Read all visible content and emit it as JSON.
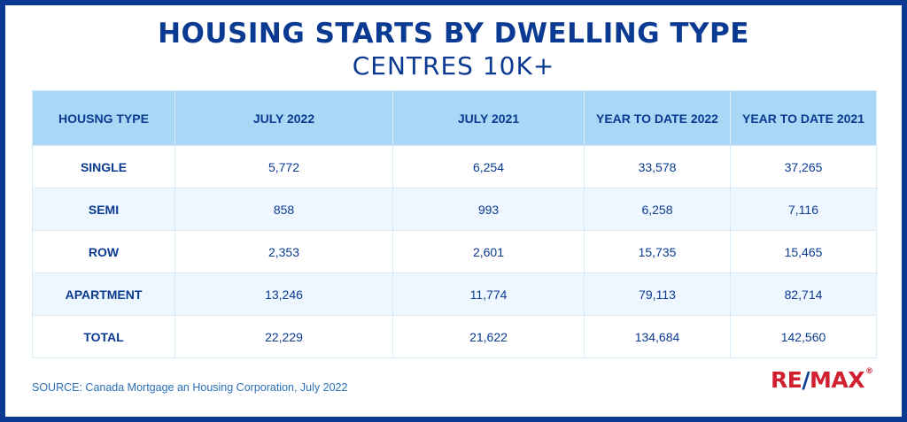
{
  "title": "HOUSING STARTS BY DWELLING TYPE",
  "subtitle": "CENTRES 10K+",
  "table": {
    "headers": [
      "HOUSNG TYPE",
      "JULY 2022",
      "JULY 2021",
      "YEAR TO DATE 2022",
      "YEAR TO DATE 2021"
    ],
    "rows": [
      {
        "type": "SINGLE",
        "july_2022": "5,772",
        "july_2021": "6,254",
        "ytd_2022": "33,578",
        "ytd_2021": "37,265"
      },
      {
        "type": "SEMI",
        "july_2022": "858",
        "july_2021": "993",
        "ytd_2022": "6,258",
        "ytd_2021": "7,116"
      },
      {
        "type": "ROW",
        "july_2022": "2,353",
        "july_2021": "2,601",
        "ytd_2022": "15,735",
        "ytd_2021": "15,465"
      },
      {
        "type": "APARTMENT",
        "july_2022": "13,246",
        "july_2021": "11,774",
        "ytd_2022": "79,113",
        "ytd_2021": "82,714"
      },
      {
        "type": "TOTAL",
        "july_2022": "22,229",
        "july_2021": "21,622",
        "ytd_2022": "134,684",
        "ytd_2021": "142,560"
      }
    ]
  },
  "source": "SOURCE: Canada Mortgage an Housing Corporation, July 2022",
  "logo": {
    "text_left": "RE",
    "slash": "/",
    "text_right": "MAX",
    "registered": "®"
  },
  "colors": {
    "brand_blue": "#0a3a91",
    "header_fill": "#a9d8f6",
    "zebra_fill": "#eef7fd",
    "logo_red": "#d1202f",
    "source_text": "#2a6fb8"
  },
  "chart_data": {
    "type": "table",
    "title": "HOUSING STARTS BY DWELLING TYPE",
    "subtitle": "CENTRES 10K+",
    "columns": [
      "HOUSNG TYPE",
      "JULY 2022",
      "JULY 2021",
      "YEAR TO DATE 2022",
      "YEAR TO DATE 2021"
    ],
    "rows": [
      [
        "SINGLE",
        5772,
        6254,
        33578,
        37265
      ],
      [
        "SEMI",
        858,
        993,
        6258,
        7116
      ],
      [
        "ROW",
        2353,
        2601,
        15735,
        15465
      ],
      [
        "APARTMENT",
        13246,
        11774,
        79113,
        82714
      ],
      [
        "TOTAL",
        22229,
        21622,
        134684,
        142560
      ]
    ]
  }
}
